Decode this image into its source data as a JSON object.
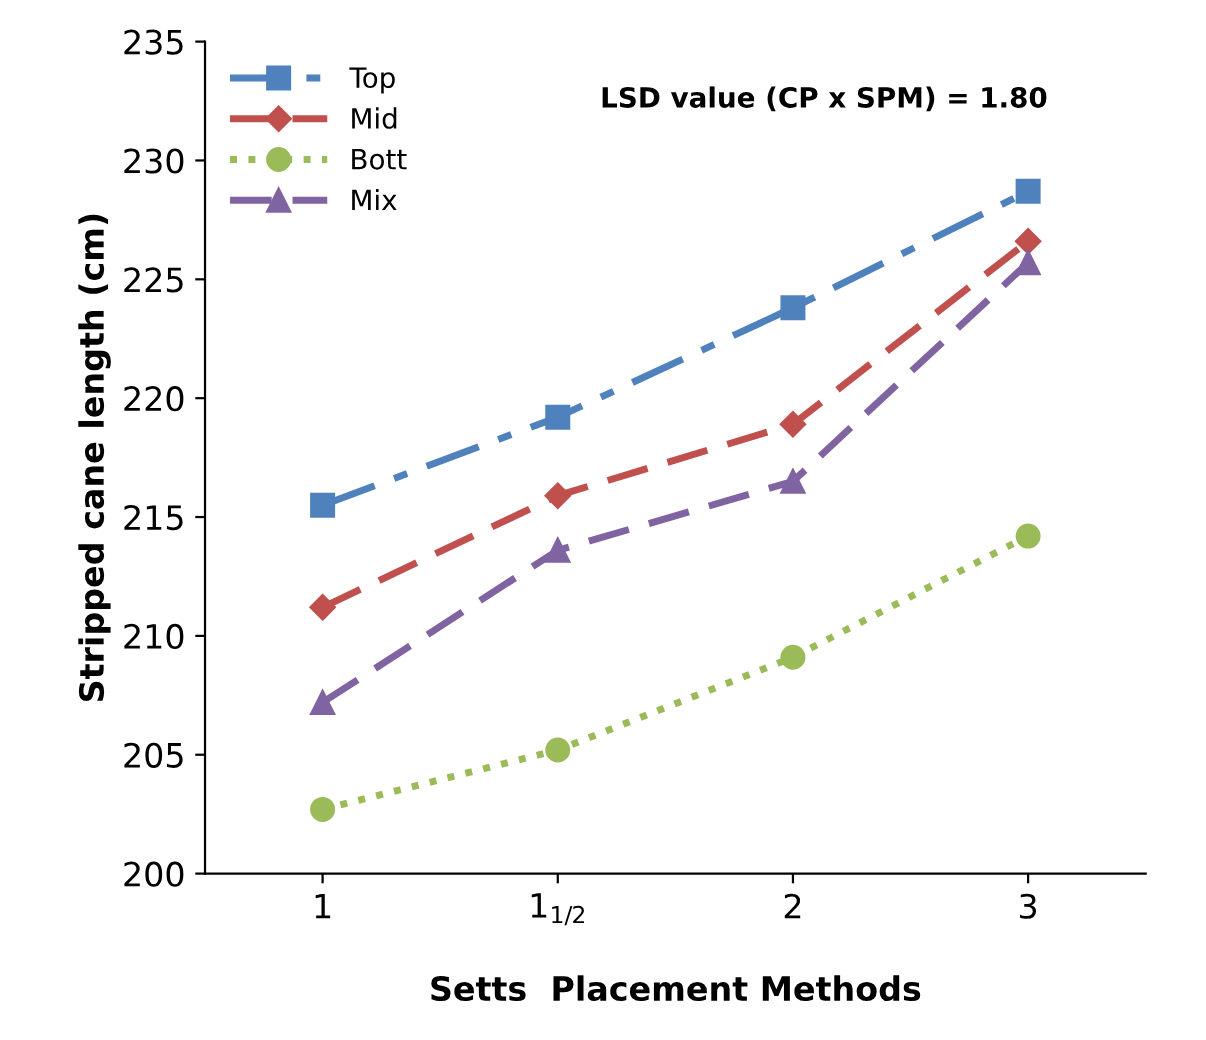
{
  "chart_data": {
    "type": "line",
    "xlabel": "Setts  Placement Methods",
    "ylabel": "Stripped cane length (cm)",
    "categories": [
      "1",
      "1$_{1/2}$",
      "2",
      "3"
    ],
    "series": [
      {
        "name": "Top",
        "color": "#4f81bd",
        "marker": "square",
        "line_style": "dashdot",
        "values": [
          215.5,
          219.2,
          223.8,
          228.7
        ]
      },
      {
        "name": "Mid",
        "color": "#c0504d",
        "marker": "diamond",
        "line_style": "dashed",
        "values": [
          211.2,
          215.9,
          218.9,
          226.6
        ]
      },
      {
        "name": "Bott",
        "color": "#9bbb59",
        "marker": "circle",
        "line_style": "dotted",
        "values": [
          202.7,
          205.2,
          209.1,
          214.2
        ]
      },
      {
        "name": "Mix",
        "color": "#8064a2",
        "marker": "triangle",
        "line_style": "dashed",
        "values": [
          207.2,
          213.6,
          216.5,
          225.7
        ]
      }
    ],
    "ylim": [
      200,
      235
    ],
    "yticks": [
      200,
      205,
      210,
      215,
      220,
      225,
      230,
      235
    ],
    "annotations": [
      "LSD value (CP x SPM) = 1.80"
    ],
    "legend": "top left",
    "grid": false
  }
}
